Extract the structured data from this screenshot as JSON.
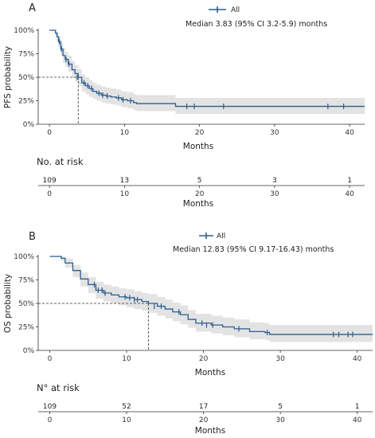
{
  "chart_data": [
    {
      "type": "line",
      "panel_label": "A",
      "legend": {
        "label": "All",
        "placement": "top-center"
      },
      "annotation": "Median 3.83 (95% CI 3.2-5.9) months",
      "xlabel": "Months",
      "ylabel": "PFS probability",
      "xlim": [
        -1.5,
        42
      ],
      "ylim": [
        0,
        1
      ],
      "xticks": [
        "0",
        "10",
        "20",
        "30",
        "40"
      ],
      "yticks": [
        "0%",
        "25%",
        "50%",
        "75%",
        "100%"
      ],
      "median": 3.83,
      "series": [
        {
          "name": "All",
          "color": "#2b5d8f",
          "x": [
            0,
            0.8,
            1.0,
            1.2,
            1.5,
            1.8,
            2.1,
            2.5,
            3.0,
            3.4,
            3.83,
            4.3,
            4.8,
            5.3,
            5.8,
            6.3,
            6.9,
            7.5,
            8.2,
            8.9,
            9.6,
            10.4,
            11.2,
            11.6,
            16.8,
            18.5,
            25.0,
            38.0,
            42.0
          ],
          "y": [
            1.0,
            0.97,
            0.93,
            0.88,
            0.8,
            0.73,
            0.69,
            0.64,
            0.58,
            0.54,
            0.5,
            0.44,
            0.41,
            0.38,
            0.35,
            0.33,
            0.31,
            0.3,
            0.29,
            0.28,
            0.26,
            0.25,
            0.23,
            0.22,
            0.19,
            0.19,
            0.19,
            0.19,
            0.19
          ],
          "ci_upper": [
            1.0,
            1.0,
            0.98,
            0.94,
            0.87,
            0.81,
            0.77,
            0.73,
            0.67,
            0.63,
            0.59,
            0.53,
            0.5,
            0.47,
            0.44,
            0.42,
            0.4,
            0.39,
            0.38,
            0.37,
            0.35,
            0.34,
            0.32,
            0.31,
            0.28,
            0.28,
            0.28,
            0.28,
            0.28
          ],
          "ci_lower": [
            1.0,
            0.94,
            0.88,
            0.82,
            0.73,
            0.65,
            0.61,
            0.56,
            0.49,
            0.45,
            0.41,
            0.35,
            0.32,
            0.29,
            0.27,
            0.25,
            0.23,
            0.22,
            0.21,
            0.2,
            0.18,
            0.17,
            0.15,
            0.14,
            0.11,
            0.11,
            0.11,
            0.11,
            0.11
          ],
          "censor_x": [
            1.3,
            1.6,
            2.2,
            2.6,
            3.7,
            4.6,
            5.1,
            5.6,
            6.6,
            7.1,
            7.7,
            9.2,
            9.8,
            10.8,
            18.3,
            19.3,
            23.2,
            37.1,
            39.2
          ],
          "censor_y": [
            0.88,
            0.8,
            0.69,
            0.64,
            0.5,
            0.44,
            0.41,
            0.38,
            0.33,
            0.31,
            0.3,
            0.28,
            0.26,
            0.25,
            0.19,
            0.19,
            0.19,
            0.19,
            0.19
          ]
        }
      ],
      "risk_table": {
        "title": "No. at risk",
        "xlabel": "Months",
        "times": [
          0,
          10,
          20,
          30,
          40
        ],
        "counts": [
          "109",
          "13",
          "5",
          "3",
          "1"
        ]
      }
    },
    {
      "type": "line",
      "panel_label": "B",
      "legend": {
        "label": "All",
        "placement": "top-center"
      },
      "annotation": "Median 12.83 (95% CI 9.17-16.43) months",
      "xlabel": "Months",
      "ylabel": "OS probability",
      "xlim": [
        -1.5,
        42
      ],
      "ylim": [
        0,
        1
      ],
      "xticks": [
        "0",
        "10",
        "20",
        "30",
        "40"
      ],
      "yticks": [
        "0%",
        "25%",
        "50%",
        "75%",
        "100%"
      ],
      "median": 12.83,
      "series": [
        {
          "name": "All",
          "color": "#2b5d8f",
          "x": [
            0,
            1.5,
            2.0,
            3.0,
            4.0,
            5.0,
            6.0,
            7.0,
            8.0,
            9.0,
            10.0,
            11.0,
            12.0,
            12.83,
            14.0,
            15.0,
            16.0,
            17.0,
            18.0,
            19.0,
            21.0,
            22.5,
            24.0,
            26.0,
            28.0,
            28.6,
            42.0
          ],
          "y": [
            1.0,
            0.98,
            0.93,
            0.85,
            0.76,
            0.7,
            0.64,
            0.61,
            0.59,
            0.57,
            0.56,
            0.54,
            0.52,
            0.5,
            0.47,
            0.44,
            0.41,
            0.38,
            0.33,
            0.29,
            0.27,
            0.25,
            0.23,
            0.2,
            0.19,
            0.17,
            0.17
          ],
          "ci_upper": [
            1.0,
            1.0,
            0.98,
            0.91,
            0.83,
            0.78,
            0.73,
            0.7,
            0.68,
            0.66,
            0.65,
            0.63,
            0.61,
            0.6,
            0.57,
            0.54,
            0.51,
            0.48,
            0.43,
            0.39,
            0.37,
            0.35,
            0.33,
            0.3,
            0.29,
            0.27,
            0.27
          ],
          "ci_lower": [
            1.0,
            0.95,
            0.88,
            0.78,
            0.68,
            0.61,
            0.55,
            0.52,
            0.5,
            0.48,
            0.46,
            0.44,
            0.42,
            0.4,
            0.37,
            0.34,
            0.31,
            0.28,
            0.24,
            0.2,
            0.18,
            0.16,
            0.14,
            0.12,
            0.11,
            0.09,
            0.09
          ],
          "censor_x": [
            5.8,
            6.3,
            6.8,
            7.2,
            9.8,
            10.4,
            11.0,
            11.4,
            13.6,
            14.5,
            16.8,
            19.8,
            20.4,
            21.2,
            24.6,
            28.3,
            36.9,
            37.6,
            38.8,
            39.4
          ],
          "censor_y": [
            0.7,
            0.64,
            0.64,
            0.61,
            0.57,
            0.56,
            0.54,
            0.54,
            0.47,
            0.47,
            0.41,
            0.29,
            0.27,
            0.27,
            0.23,
            0.19,
            0.17,
            0.17,
            0.17,
            0.17
          ]
        }
      ],
      "risk_table": {
        "title": "N° at risk",
        "xlabel": "Months",
        "times": [
          0,
          10,
          20,
          30,
          40
        ],
        "counts": [
          "109",
          "52",
          "17",
          "5",
          "1"
        ]
      }
    }
  ]
}
